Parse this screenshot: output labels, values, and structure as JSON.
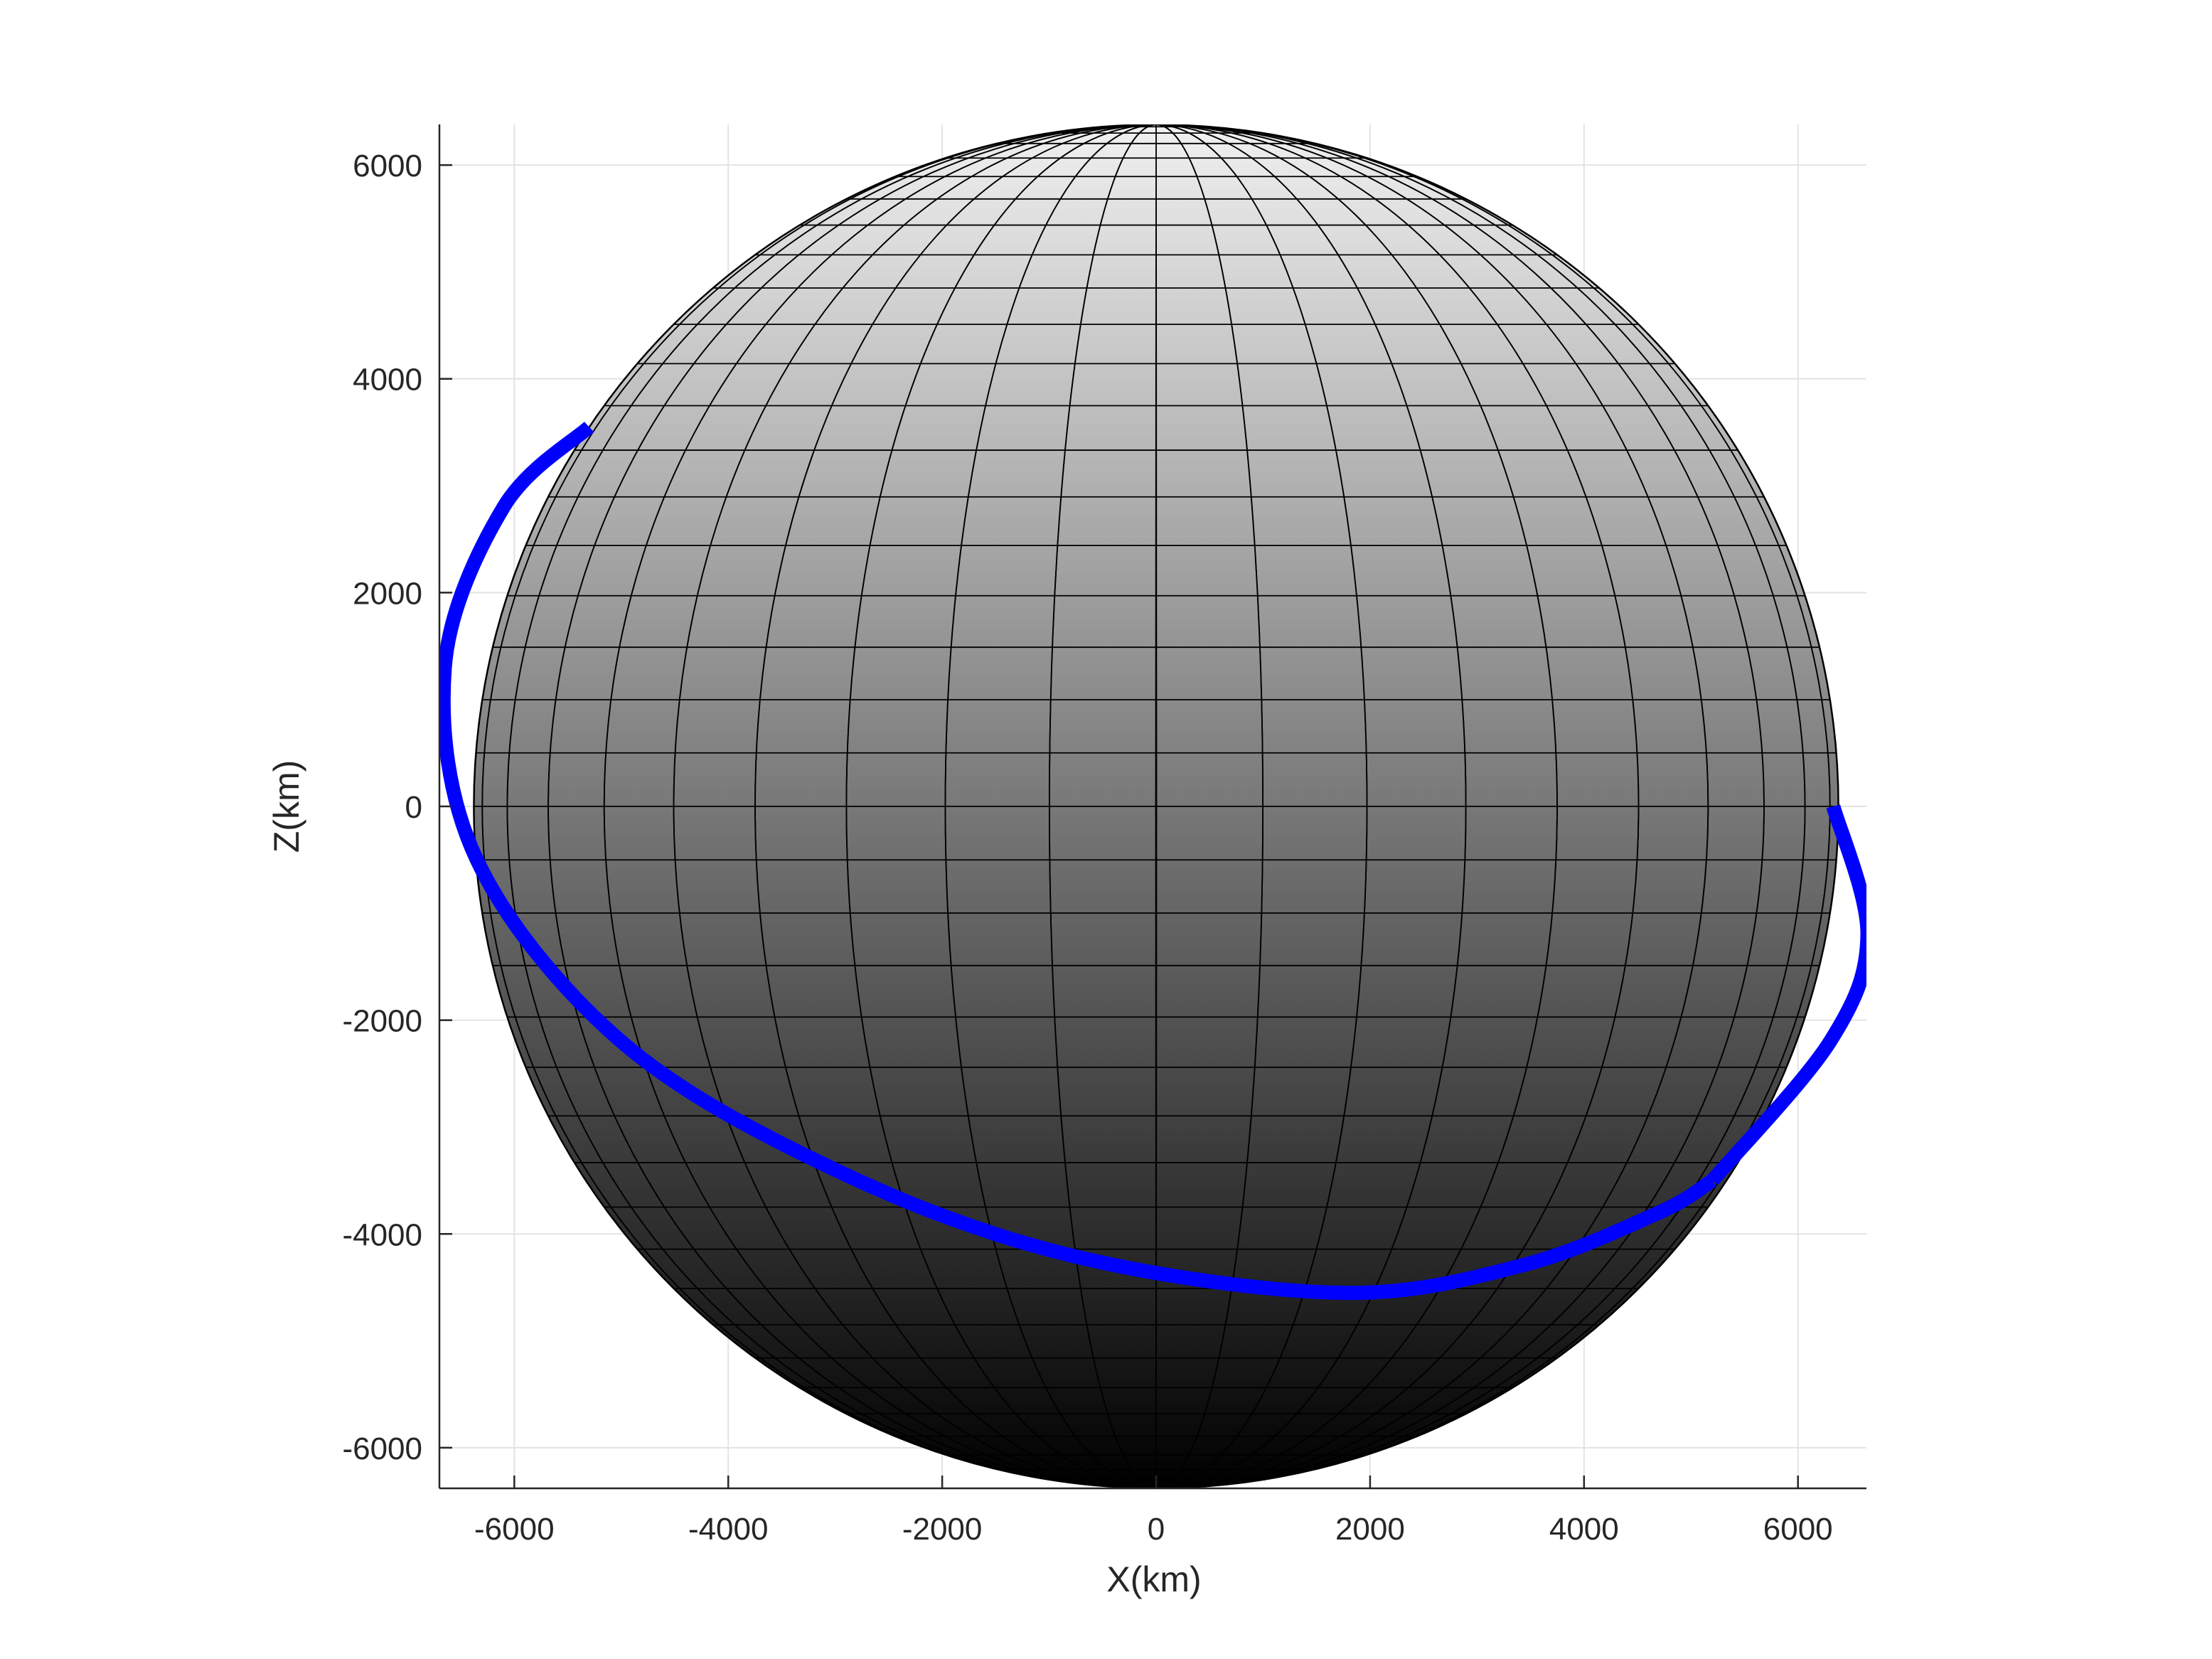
{
  "chart_data": {
    "type": "line",
    "title": "",
    "xlabel": "X(km)",
    "ylabel": "Z(km)",
    "xlim": [
      -6700,
      6640
    ],
    "ylim": [
      -6380,
      6380
    ],
    "xticks": [
      -6000,
      -4000,
      -2000,
      0,
      2000,
      4000,
      6000
    ],
    "yticks": [
      -6000,
      -4000,
      -2000,
      0,
      2000,
      4000,
      6000
    ],
    "grid": true,
    "legend": "none",
    "sphere": {
      "radius": 6378,
      "center": [
        0,
        0
      ],
      "meridians": 40,
      "parallels": 40,
      "edge_color": "#000000",
      "shade_top": "#f0f0f0",
      "shade_bottom": "#000000"
    },
    "series": [
      {
        "kind": "ellipse-orbit",
        "color": "#0000ff",
        "center": [
          -150,
          -300
        ],
        "points_front": [
          [
            -5300,
            3550
          ],
          [
            -6100,
            2800
          ],
          [
            -6650,
            1300
          ],
          [
            -6350,
            -500
          ],
          [
            -5000,
            -2200
          ],
          [
            -3000,
            -3400
          ],
          [
            -800,
            -4200
          ],
          [
            1700,
            -4550
          ],
          [
            3400,
            -4300
          ],
          [
            4700,
            -3800
          ],
          [
            5200,
            -3500
          ]
        ],
        "points_back": [
          [
            6330,
            0
          ],
          [
            6650,
            -1200
          ],
          [
            6300,
            -2200
          ],
          [
            5200,
            -3500
          ]
        ]
      }
    ]
  }
}
